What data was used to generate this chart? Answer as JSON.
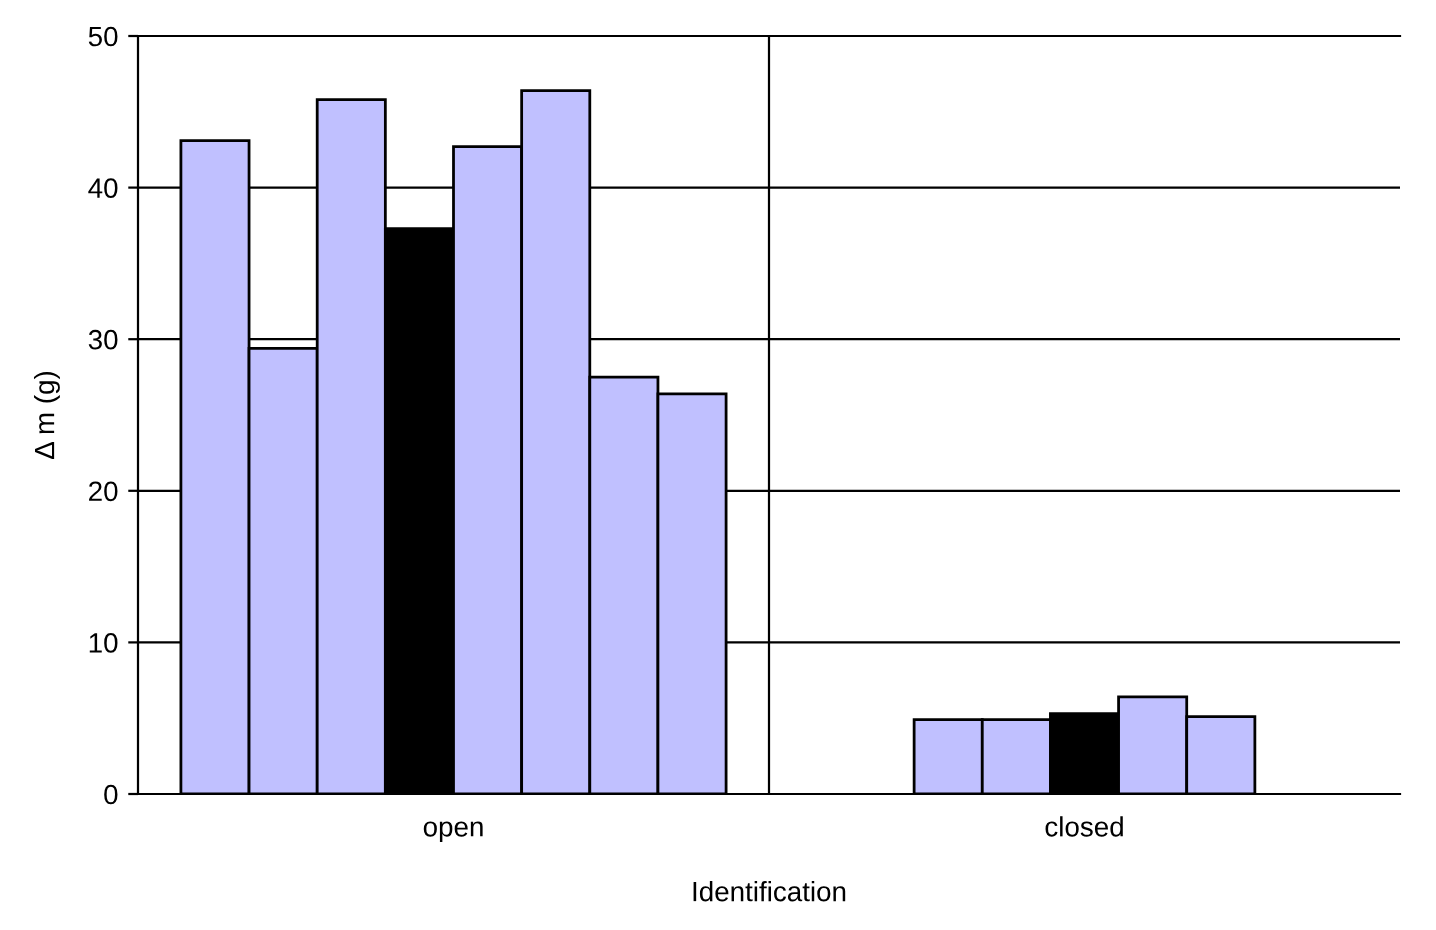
{
  "chart_data": {
    "type": "bar",
    "xlabel": "Identification",
    "ylabel": "Δ m (g)",
    "categories": [
      "open",
      "closed"
    ],
    "series": [
      {
        "values": [
          43.1,
          4.9
        ],
        "colors": [
          "#c0c0ff",
          "#c0c0ff"
        ]
      },
      {
        "values": [
          29.4,
          4.9
        ],
        "colors": [
          "#c0c0ff",
          "#c0c0ff"
        ]
      },
      {
        "values": [
          45.8,
          5.3
        ],
        "colors": [
          "#c0c0ff",
          "#000000"
        ]
      },
      {
        "values": [
          37.3,
          6.4
        ],
        "colors": [
          "#000000",
          "#c0c0ff"
        ]
      },
      {
        "values": [
          42.7,
          5.1
        ],
        "colors": [
          "#c0c0ff",
          "#c0c0ff"
        ]
      },
      {
        "values": [
          46.4,
          null
        ],
        "colors": [
          "#c0c0ff",
          null
        ]
      },
      {
        "values": [
          27.5,
          null
        ],
        "colors": [
          "#c0c0ff",
          null
        ]
      },
      {
        "values": [
          26.4,
          null
        ],
        "colors": [
          "#c0c0ff",
          null
        ]
      }
    ],
    "ylim": [
      0,
      50
    ],
    "yticks": [
      0,
      10,
      20,
      30,
      40,
      50
    ],
    "grid": true,
    "legend": false
  }
}
